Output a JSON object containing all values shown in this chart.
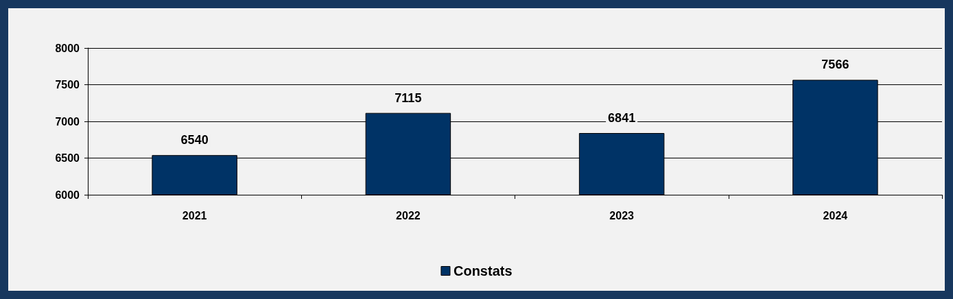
{
  "chart_data": {
    "type": "bar",
    "categories": [
      "2021",
      "2022",
      "2023",
      "2024"
    ],
    "series": [
      {
        "name": "Constats",
        "color": "#003366",
        "values": [
          6540,
          7115,
          6841,
          7566
        ]
      }
    ],
    "ylim": [
      6000,
      8000
    ],
    "yticks": [
      6000,
      6500,
      7000,
      7500,
      8000
    ],
    "grid": "y",
    "legend": "bottom",
    "data_labels": true
  }
}
